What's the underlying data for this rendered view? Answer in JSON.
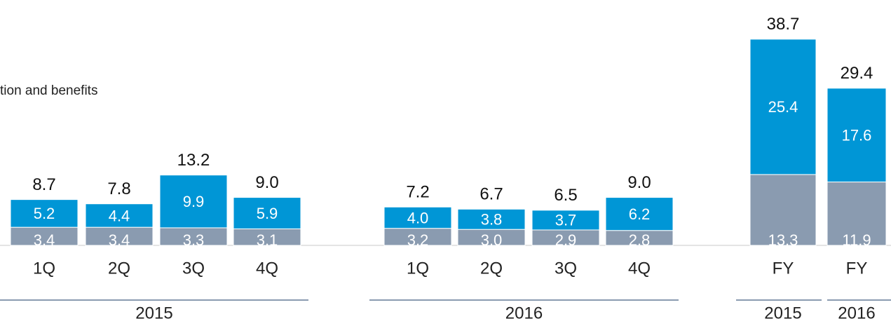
{
  "chart_data": {
    "type": "stacked-bar",
    "annotation": "tion and benefits",
    "groups": [
      {
        "label": "2015",
        "categories": [
          "1Q",
          "2Q",
          "3Q",
          "4Q"
        ]
      },
      {
        "label": "2016",
        "categories": [
          "1Q",
          "2Q",
          "3Q",
          "4Q"
        ]
      },
      {
        "label": "2015",
        "categories": [
          "FY"
        ]
      },
      {
        "label": "2016",
        "categories": [
          "FY"
        ]
      }
    ],
    "series": [
      {
        "color": "#8a9bb0",
        "values": [
          3.4,
          3.4,
          3.3,
          3.1,
          3.2,
          3.0,
          2.9,
          2.8,
          13.3,
          11.9
        ],
        "value_labels": [
          "3.4",
          "3.4",
          "3.3",
          "3.1",
          "3.2",
          "3.0",
          "2.9",
          "2.8",
          "13.3",
          "11.9"
        ]
      },
      {
        "color": "#0096d6",
        "values": [
          5.2,
          4.4,
          9.9,
          5.9,
          4.0,
          3.8,
          3.7,
          6.2,
          25.4,
          17.6
        ],
        "value_labels": [
          "5.2",
          "4.4",
          "9.9",
          "5.9",
          "4.0",
          "3.8",
          "3.7",
          "6.2",
          "25.4",
          "17.6"
        ]
      }
    ],
    "totals": [
      8.7,
      7.8,
      13.2,
      9.0,
      7.2,
      6.7,
      6.5,
      9.0,
      38.7,
      29.4
    ],
    "total_labels": [
      "8.7",
      "7.8",
      "13.2",
      "9.0",
      "7.2",
      "6.7",
      "6.5",
      "9.0",
      "38.7",
      "29.4"
    ]
  }
}
